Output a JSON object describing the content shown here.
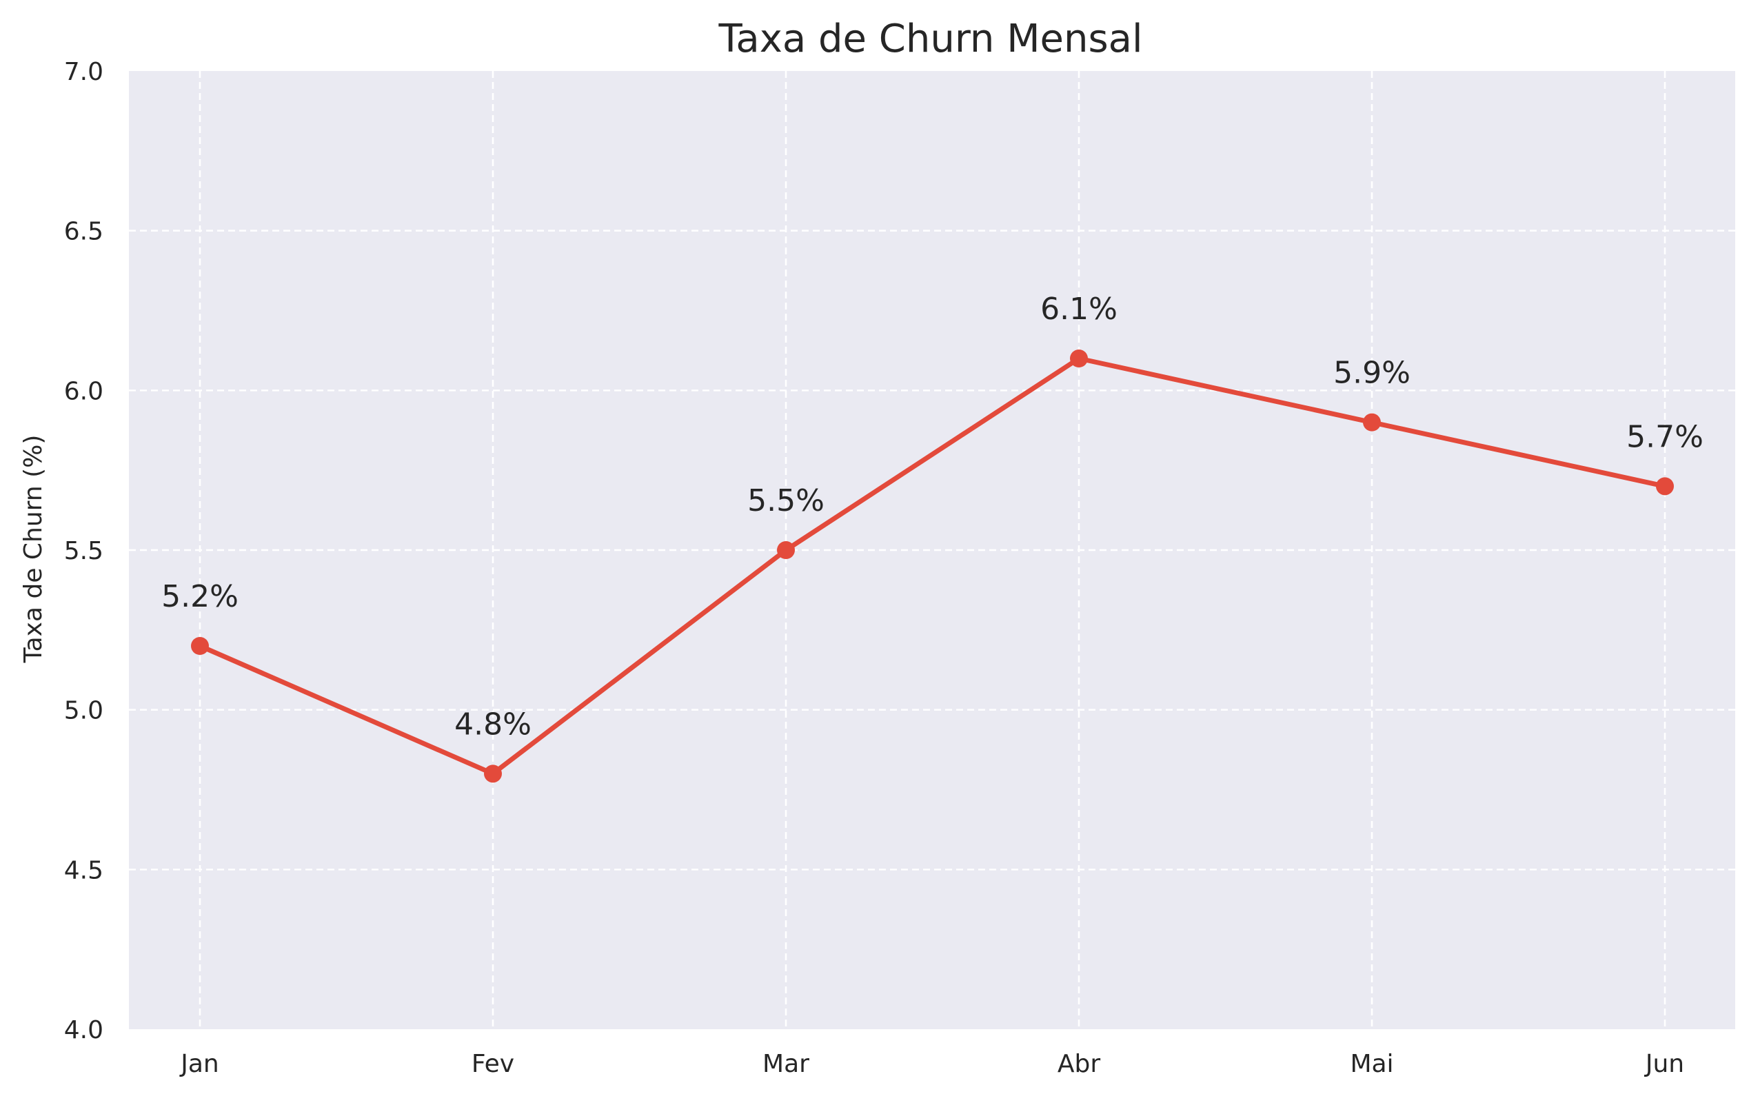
{
  "chart_data": {
    "type": "line",
    "title": "Taxa de Churn Mensal",
    "xlabel": "",
    "ylabel": "Taxa de Churn (%)",
    "categories": [
      "Jan",
      "Fev",
      "Mar",
      "Abr",
      "Mai",
      "Jun"
    ],
    "series": [
      {
        "values": [
          5.2,
          4.8,
          5.5,
          6.1,
          5.9,
          5.7
        ],
        "labels": [
          "5.2%",
          "4.8%",
          "5.5%",
          "6.1%",
          "5.9%",
          "5.7%"
        ],
        "color": "#e34a3b"
      }
    ],
    "ylim": [
      4.0,
      7.0
    ],
    "yticks": [
      "4.0",
      "4.5",
      "5.0",
      "5.5",
      "6.0",
      "6.5",
      "7.0"
    ],
    "grid": true,
    "background_color": "#eaeaf2"
  }
}
